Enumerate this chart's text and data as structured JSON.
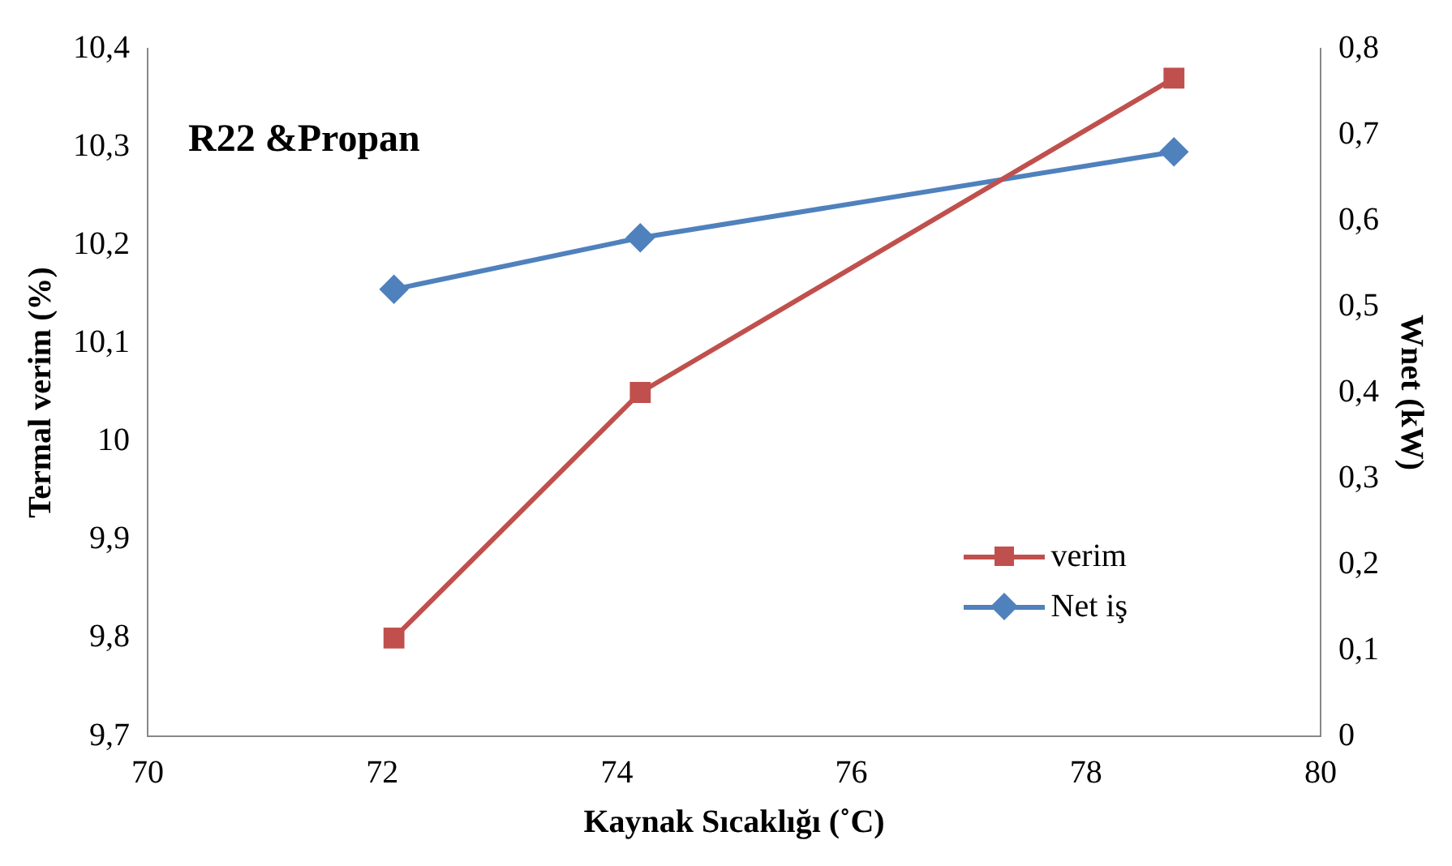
{
  "chart_data": {
    "type": "line",
    "xlabel": "Kaynak Sıcaklığı (˚C)",
    "ylabel": "Termal verim (%)",
    "y2label": "Wnet (kW)",
    "annotations": [
      "R22 &Propan"
    ],
    "xlim": [
      70,
      80
    ],
    "xticks": [
      70,
      72,
      74,
      76,
      78,
      80
    ],
    "ylim": [
      9.7,
      10.4
    ],
    "yticks": [
      {
        "value": 9.7,
        "label": "9,7"
      },
      {
        "value": 9.8,
        "label": "9,8"
      },
      {
        "value": 9.9,
        "label": "9,9"
      },
      {
        "value": 10,
        "label": "10"
      },
      {
        "value": 10.1,
        "label": "10,1"
      },
      {
        "value": 10.2,
        "label": "10,2"
      },
      {
        "value": 10.3,
        "label": "10,3"
      },
      {
        "value": 10.4,
        "label": "10,4"
      }
    ],
    "y2lim": [
      0,
      0.8
    ],
    "y2ticks": [
      0,
      {
        "value": 0.1,
        "label": "0,1"
      },
      {
        "value": 0.2,
        "label": "0,2"
      },
      {
        "value": 0.3,
        "label": "0,3"
      },
      {
        "value": 0.4,
        "label": "0,4"
      },
      {
        "value": 0.5,
        "label": "0,5"
      },
      {
        "value": 0.6,
        "label": "0,6"
      },
      {
        "value": 0.7,
        "label": "0,7"
      },
      {
        "value": 0.8,
        "label": "0,8"
      }
    ],
    "grid": false,
    "legend": "bottom right",
    "line_style": "solid",
    "series": [
      {
        "name": "verim",
        "color": "#c0504d",
        "marker": "square",
        "x": [
          72.1,
          74.2,
          78.75
        ],
        "values": [
          9.8,
          10.05,
          10.37
        ]
      },
      {
        "name": "Net iş",
        "color": "#4f81bd",
        "marker": "diamond",
        "axis": "y2",
        "x": [
          72.1,
          74.2,
          78.75
        ],
        "values": [
          0.52,
          0.58,
          0.68
        ]
      }
    ]
  }
}
